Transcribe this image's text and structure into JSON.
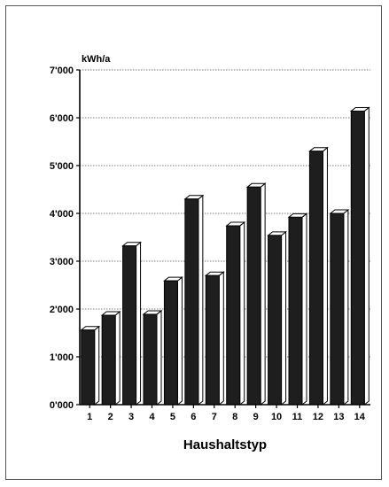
{
  "chart_data": {
    "type": "bar",
    "title": "",
    "ylabel": "kWh/a",
    "xlabel": "Haushaltstyp",
    "categories": [
      "1",
      "2",
      "3",
      "4",
      "5",
      "6",
      "7",
      "8",
      "9",
      "10",
      "11",
      "12",
      "13",
      "14"
    ],
    "values": [
      1560,
      1870,
      3320,
      1890,
      2590,
      4300,
      2700,
      3740,
      4550,
      3540,
      3920,
      5300,
      4000,
      6140
    ],
    "ylim": [
      0,
      7000
    ],
    "yticks": [
      0,
      1000,
      2000,
      3000,
      4000,
      5000,
      6000,
      7000
    ],
    "ytick_labels": [
      "0'000",
      "1'000",
      "2'000",
      "3'000",
      "4'000",
      "5'000",
      "6'000",
      "7'000"
    ],
    "grid": true,
    "colors": {
      "bar_front": "#1e1e1e",
      "bar_side": "#ffffff",
      "bar_top": "#ffffff",
      "outline": "#000000",
      "grid": "#555555"
    }
  }
}
